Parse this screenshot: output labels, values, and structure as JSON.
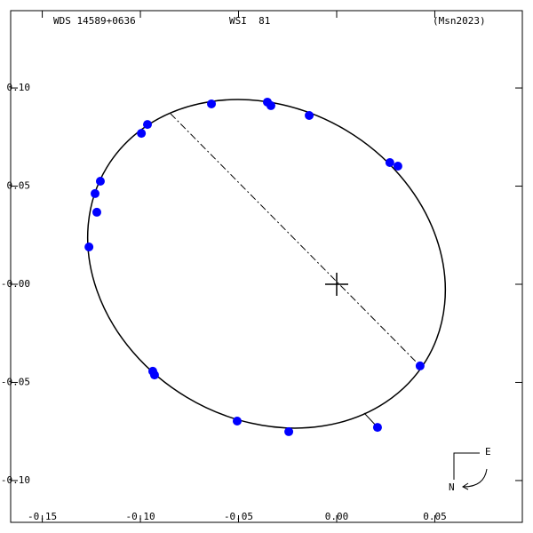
{
  "chart_data": {
    "type": "scatter",
    "annotations": [
      "WDS 14589+0636",
      "WSI  81",
      "(Msn2023)"
    ],
    "compass": [
      "E",
      "N"
    ],
    "color": "#0000ff",
    "x": [
      -0.0638,
      -0.0353,
      -0.0335,
      -0.014,
      -0.0964,
      -0.0995,
      0.0271,
      0.0312,
      -0.1204,
      -0.1231,
      -0.1222,
      -0.1262,
      0.0425,
      -0.0937,
      -0.0928,
      -0.0507,
      -0.0244,
      0.0208
    ],
    "values": [
      0.0919,
      0.0928,
      0.091,
      0.086,
      0.0814,
      0.0769,
      0.062,
      0.0602,
      0.0525,
      0.0462,
      0.0367,
      0.019,
      -0.0416,
      -0.0443,
      -0.0462,
      -0.0697,
      -0.0751,
      -0.0729
    ],
    "xlim": [
      -0.1661,
      0.0946
    ],
    "ylim": [
      -0.1213,
      0.1394
    ],
    "xticks": [
      -0.15,
      {
        "value": -0.1,
        "label": "-0.10"
      },
      -0.05,
      {
        "value": 0,
        "label": "0.00"
      },
      0.05
    ],
    "yticks": [
      {
        "value": 0.1,
        "label": "0.10"
      },
      0.05,
      {
        "value": 0,
        "label": "-0.00"
      },
      -0.05,
      {
        "value": -0.1,
        "label": "-0.10"
      }
    ],
    "grid": false
  }
}
